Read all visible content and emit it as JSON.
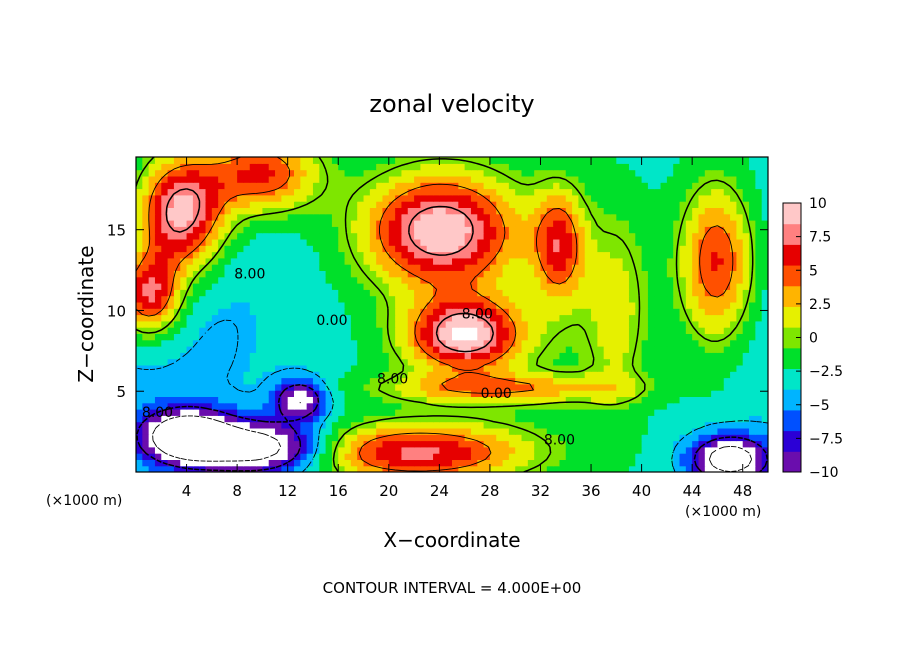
{
  "chart_data": {
    "type": "heatmap",
    "title": "zonal velocity",
    "xlabel": "X−coordinate",
    "ylabel": "Z−coordinate",
    "x_unit_left": "(×1000 m)",
    "x_unit_right": "(×1000 m)",
    "footer": "CONTOUR INTERVAL = 4.000E+00",
    "xlim": [
      0,
      50
    ],
    "ylim": [
      0,
      19.5
    ],
    "x_ticks": [
      4,
      8,
      12,
      16,
      20,
      24,
      28,
      32,
      36,
      40,
      44,
      48
    ],
    "x_tick_labels": [
      "4",
      "8",
      "12",
      "16",
      "20",
      "24",
      "28",
      "32",
      "36",
      "40",
      "44",
      "48"
    ],
    "y_ticks": [
      5,
      10,
      15
    ],
    "y_tick_labels": [
      "5",
      "10",
      "15"
    ],
    "colorbar": {
      "range": [
        -10,
        10
      ],
      "ticks": [
        10,
        7.5,
        5,
        2.5,
        0,
        -2.5,
        -5,
        -7.5,
        -10
      ],
      "tick_labels": [
        "10",
        "7.5",
        "5",
        "2.5",
        "0",
        "−2.5",
        "−5",
        "−7.5",
        "−10"
      ],
      "colors": [
        "#6a0dad",
        "#2b00d6",
        "#0050ff",
        "#00b4ff",
        "#00e6c8",
        "#00e02a",
        "#7ee600",
        "#e6f000",
        "#ffb400",
        "#ff5000",
        "#e60000",
        "#ff8080",
        "#ffc8c8"
      ]
    },
    "contour_interval": 4,
    "contour_labels": [
      {
        "text": "8.00",
        "x": 9,
        "y": 12.3
      },
      {
        "text": "8.00",
        "x": 1.7,
        "y": 3.7
      },
      {
        "text": "0.00",
        "x": 15.5,
        "y": 9.4
      },
      {
        "text": "8.00",
        "x": 27,
        "y": 9.8
      },
      {
        "text": "8.00",
        "x": 20.3,
        "y": 5.8
      },
      {
        "text": "0.00",
        "x": 28.5,
        "y": 4.9
      },
      {
        "text": "8.00",
        "x": 33.5,
        "y": 2.0
      }
    ],
    "features": [
      {
        "value": 13,
        "x": 3.5,
        "y": 16,
        "sx": 3.5,
        "sy": 3.5
      },
      {
        "value": 11,
        "x": 1.0,
        "y": 11,
        "sx": 2.5,
        "sy": 2.5
      },
      {
        "value": 9,
        "x": 10,
        "y": 18.5,
        "sx": 4.5,
        "sy": 2.5
      },
      {
        "value": 12,
        "x": 24,
        "y": 15,
        "sx": 6,
        "sy": 3.5
      },
      {
        "value": 8,
        "x": 33.5,
        "y": 14,
        "sx": 2,
        "sy": 3.5
      },
      {
        "value": 12,
        "x": 26,
        "y": 8.5,
        "sx": 4.5,
        "sy": 2.2
      },
      {
        "value": 10,
        "x": 22,
        "y": 1.2,
        "sx": 9,
        "sy": 1.8
      },
      {
        "value": 9,
        "x": 46,
        "y": 13,
        "sx": 3,
        "sy": 5
      },
      {
        "value": -14,
        "x": 4,
        "y": 2.2,
        "sx": 3.5,
        "sy": 1.6
      },
      {
        "value": -12,
        "x": 10,
        "y": 1.5,
        "sx": 5,
        "sy": 1.6
      },
      {
        "value": -12,
        "x": 47,
        "y": 0.8,
        "sx": 3,
        "sy": 1.4
      },
      {
        "value": -9,
        "x": 13,
        "y": 4.5,
        "sx": 2,
        "sy": 1.2
      },
      {
        "value": 4,
        "x": 38,
        "y": 10,
        "sx": 2.5,
        "sy": 6
      }
    ]
  }
}
